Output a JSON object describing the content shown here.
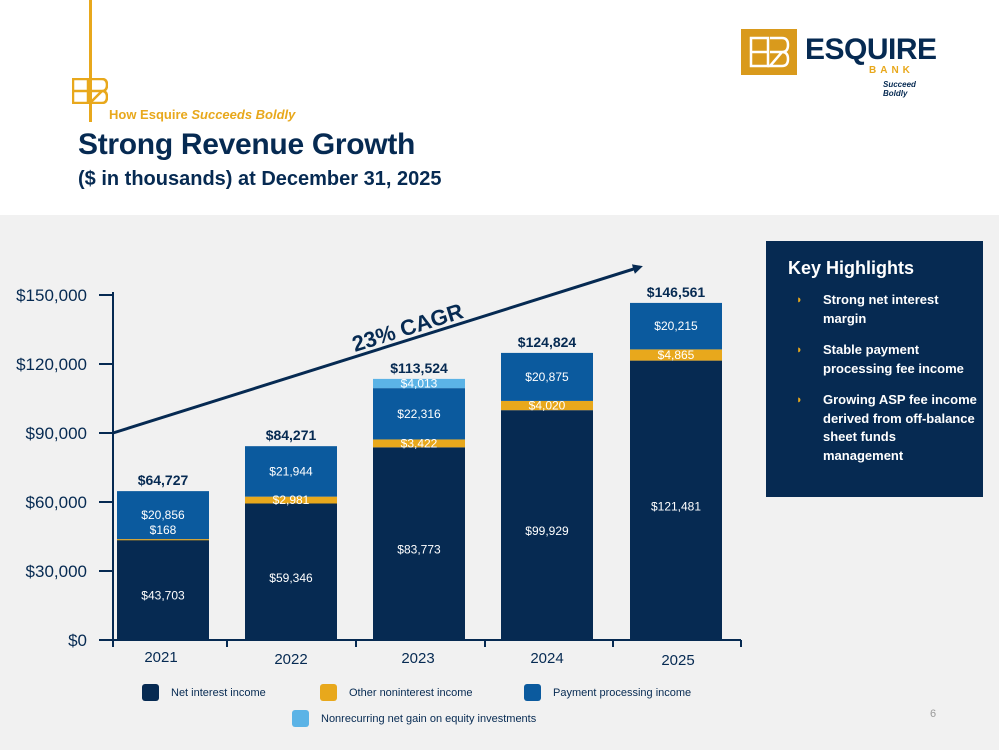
{
  "header": {
    "kicker_plain": "How Esquire ",
    "kicker_italic": "Succeeds Boldly",
    "title": "Strong Revenue Growth",
    "subtitle": "($ in thousands) at December 31, 2025"
  },
  "logo": {
    "name": "ESQUIRE",
    "bank": "BANK",
    "tagline": "Succeed Boldly",
    "mark": "EB"
  },
  "highlights": {
    "title": "Key Highlights",
    "items": [
      "Strong net interest margin",
      "Stable payment processing fee income",
      "Growing ASP fee income derived from off-balance sheet funds management"
    ]
  },
  "page_number": "6",
  "colors": {
    "navy": "#062a52",
    "gold": "#e8a81c",
    "payment_blue": "#0b5a9e",
    "light_blue": "#5bb3e6",
    "panel_gray": "#f1f1f1"
  },
  "chart_data": {
    "type": "bar",
    "stacked": true,
    "categories": [
      "2021",
      "2022",
      "2023",
      "2024",
      "2025"
    ],
    "series": [
      {
        "name": "Net interest income",
        "color": "#062a52",
        "values": [
          43703,
          59346,
          83773,
          99929,
          121481
        ],
        "labels": [
          "$43,703",
          "$59,346",
          "$83,773",
          "$99,929",
          "$121,481"
        ]
      },
      {
        "name": "Other noninterest income",
        "color": "#e8a81c",
        "values": [
          168,
          2981,
          3422,
          4020,
          4865
        ],
        "labels": [
          "$168",
          "$2,981",
          "$3,422",
          "$4,020",
          "$4,865"
        ]
      },
      {
        "name": "Payment processing income",
        "color": "#0b5a9e",
        "values": [
          20856,
          21944,
          22316,
          20875,
          20215
        ],
        "labels": [
          "$20,856",
          "$21,944",
          "$22,316",
          "$20,875",
          "$20,215"
        ]
      },
      {
        "name": "Nonrecurring net gain on equity investments",
        "color": "#5bb3e6",
        "values": [
          0,
          0,
          4013,
          0,
          0
        ],
        "labels": [
          "",
          "",
          "$4,013",
          "",
          ""
        ]
      }
    ],
    "totals": [
      64727,
      84271,
      113524,
      124824,
      146561
    ],
    "total_labels": [
      "$64,727",
      "$84,271",
      "$113,524",
      "$124,824",
      "$146,561"
    ],
    "y_ticks": [
      0,
      30000,
      60000,
      90000,
      120000,
      150000
    ],
    "y_tick_labels": [
      "$0",
      "$30,000",
      "$60,000",
      "$90,000",
      "$120,000",
      "$150,000"
    ],
    "ylim": [
      0,
      150000
    ],
    "annotation": "23% CAGR",
    "legend_position": "bottom",
    "grid": false
  }
}
